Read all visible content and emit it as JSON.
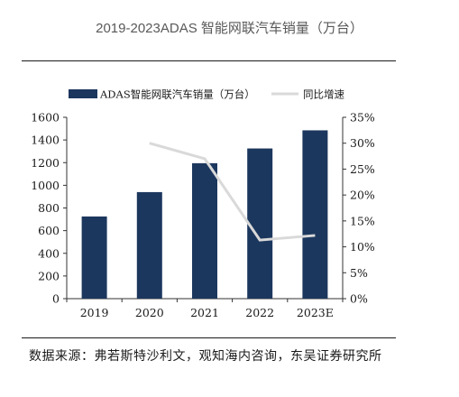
{
  "header": {
    "title": "2019-2023ADAS 智能网联汽车销量（万台）"
  },
  "chart_data": {
    "type": "bar",
    "categories": [
      "2019",
      "2020",
      "2021",
      "2022",
      "2023E"
    ],
    "series": [
      {
        "name": "ADAS智能网联汽车销量（万台）",
        "kind": "bar",
        "axis": "left",
        "values": [
          725,
          940,
          1195,
          1325,
          1485
        ]
      },
      {
        "name": "同比增速",
        "kind": "line",
        "axis": "right",
        "values": [
          null,
          0.3,
          0.27,
          0.113,
          0.122
        ]
      }
    ],
    "left_axis": {
      "ylim": [
        0,
        1600
      ],
      "ticks": [
        "0",
        "200",
        "400",
        "600",
        "800",
        "1000",
        "1200",
        "1400",
        "1600"
      ]
    },
    "right_axis": {
      "ylim": [
        0,
        0.35
      ],
      "ticks": [
        "0%",
        "5%",
        "10%",
        "15%",
        "20%",
        "25%",
        "30%",
        "35%"
      ]
    },
    "legend": "top",
    "grid": false
  },
  "colors": {
    "bar": "#1c375e",
    "line": "#d9d9d9",
    "axis": "#333333"
  },
  "footer": {
    "source": "数据来源：弗若斯特沙利文，观知海内咨询，东吴证券研究所"
  }
}
